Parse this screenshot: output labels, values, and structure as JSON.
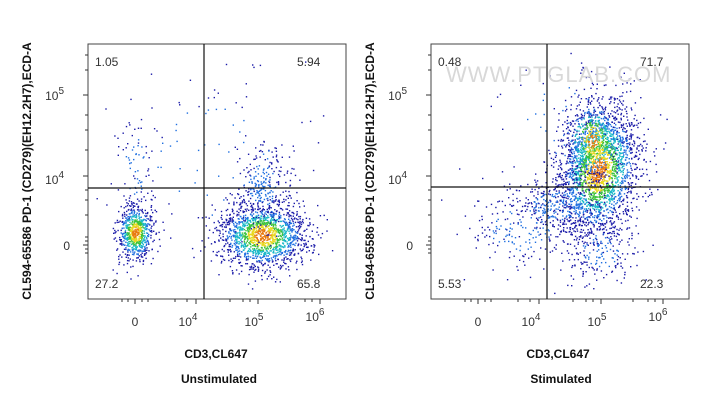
{
  "watermark": "WWW.PTGLAB.COM",
  "colors": {
    "frame": "#444444",
    "gate": "#111111",
    "density": [
      "#1a1aa8",
      "#1f6fe0",
      "#18b8c8",
      "#3cc23c",
      "#e8d820",
      "#e87a10"
    ]
  },
  "chart_data": [
    {
      "type": "scatter",
      "subtitle": "Unstimulated",
      "xlabel": "CD3,CL647",
      "ylabel": "CL594-65586 PD-1 (CD279)(EH12.2H7),ECD-A",
      "xticks": [
        "0",
        "10^4",
        "10^5",
        "10^6"
      ],
      "yticks": [
        "0",
        "10^4",
        "10^5"
      ],
      "quadrants": {
        "ul": "1.05",
        "ur": "5.94",
        "ll": "27.2",
        "lr": "65.8"
      },
      "populations": [
        {
          "name": "CD3- PD-1-",
          "x_center": "0",
          "y_center": "0"
        },
        {
          "name": "CD3+ PD-1-",
          "x_center": "10^5",
          "y_center": "0"
        }
      ]
    },
    {
      "type": "scatter",
      "subtitle": "Stimulated",
      "xlabel": "CD3,CL647",
      "ylabel": "CL594-65586 PD-1 (CD279)(EH12.2H7),ECD-A",
      "xticks": [
        "0",
        "10^4",
        "10^5",
        "10^6"
      ],
      "yticks": [
        "0",
        "10^4",
        "10^5"
      ],
      "quadrants": {
        "ul": "0.48",
        "ur": "71.7",
        "ll": "5.53",
        "lr": "22.3"
      },
      "populations": [
        {
          "name": "CD3+ PD-1+",
          "x_center": "10^5",
          "y_center": "10^4"
        }
      ]
    }
  ]
}
